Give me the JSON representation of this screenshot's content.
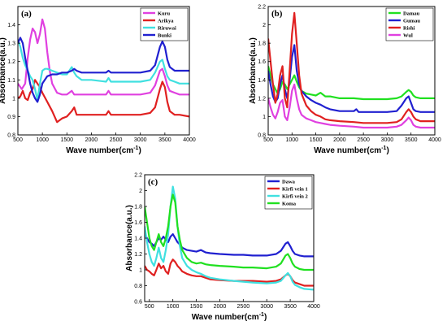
{
  "chart_data": [
    {
      "type": "line",
      "panel_label": "(a)",
      "xlabel": "Wave number(cm-1)",
      "ylabel": "Absorbance(a.u.)",
      "xlim": [
        500,
        4000
      ],
      "ylim": [
        0.8,
        1.5
      ],
      "xticks": [
        500,
        1000,
        1500,
        2000,
        2500,
        3000,
        3500,
        4000
      ],
      "yticks": [
        0.8,
        0.9,
        1.0,
        1.1,
        1.2,
        1.3,
        1.4
      ],
      "legend_position": "top-right",
      "series": [
        {
          "name": "Kuru",
          "color": "#e040e0",
          "x": [
            500,
            580,
            650,
            700,
            750,
            800,
            850,
            900,
            950,
            1000,
            1050,
            1100,
            1150,
            1200,
            1300,
            1400,
            1500,
            1600,
            1650,
            1700,
            1800,
            2000,
            2300,
            2350,
            2400,
            2700,
            3000,
            3200,
            3300,
            3400,
            3450,
            3500,
            3550,
            3600,
            3700,
            3800,
            4000
          ],
          "y": [
            1.08,
            1.05,
            1.08,
            1.22,
            1.32,
            1.38,
            1.36,
            1.3,
            1.35,
            1.43,
            1.38,
            1.25,
            1.15,
            1.08,
            1.03,
            1.02,
            1.02,
            1.04,
            1.02,
            1.02,
            1.02,
            1.02,
            1.02,
            1.04,
            1.02,
            1.02,
            1.02,
            1.03,
            1.07,
            1.15,
            1.16,
            1.12,
            1.07,
            1.04,
            1.03,
            1.02,
            1.02
          ]
        },
        {
          "name": "Arikya",
          "color": "#e02020",
          "x": [
            500,
            550,
            600,
            650,
            700,
            750,
            800,
            850,
            900,
            950,
            1000,
            1100,
            1200,
            1300,
            1400,
            1500,
            1600,
            1650,
            1700,
            1800,
            2000,
            2300,
            2350,
            2400,
            2700,
            3000,
            3200,
            3300,
            3400,
            3450,
            3500,
            3550,
            3600,
            3700,
            3800,
            4000
          ],
          "y": [
            1.0,
            1.01,
            1.04,
            1.0,
            0.99,
            1.03,
            1.05,
            1.1,
            1.08,
            1.06,
            1.03,
            0.98,
            0.93,
            0.87,
            0.89,
            0.9,
            0.93,
            0.95,
            0.91,
            0.91,
            0.91,
            0.91,
            0.93,
            0.91,
            0.91,
            0.91,
            0.92,
            0.95,
            1.05,
            1.09,
            1.06,
            0.98,
            0.93,
            0.91,
            0.91,
            0.9
          ]
        },
        {
          "name": "Riruwai",
          "color": "#40e0e0",
          "x": [
            500,
            550,
            600,
            650,
            700,
            750,
            800,
            850,
            900,
            950,
            1000,
            1050,
            1100,
            1200,
            1300,
            1400,
            1500,
            1600,
            1650,
            1700,
            1800,
            2000,
            2300,
            2350,
            2400,
            2700,
            3000,
            3200,
            3300,
            3400,
            3450,
            3500,
            3550,
            3600,
            3700,
            3800,
            4000
          ],
          "y": [
            1.32,
            1.28,
            1.22,
            1.18,
            1.15,
            1.12,
            1.1,
            1.05,
            0.99,
            1.08,
            1.15,
            1.16,
            1.16,
            1.15,
            1.14,
            1.13,
            1.13,
            1.17,
            1.14,
            1.12,
            1.1,
            1.1,
            1.09,
            1.11,
            1.09,
            1.09,
            1.09,
            1.1,
            1.14,
            1.2,
            1.21,
            1.16,
            1.12,
            1.1,
            1.09,
            1.08,
            1.08
          ]
        },
        {
          "name": "Bunki",
          "color": "#2020d0",
          "x": [
            500,
            550,
            600,
            650,
            700,
            750,
            800,
            850,
            900,
            950,
            1000,
            1100,
            1200,
            1300,
            1400,
            1500,
            1600,
            1650,
            1700,
            1800,
            2000,
            2300,
            2350,
            2400,
            2700,
            3000,
            3200,
            3300,
            3400,
            3450,
            3500,
            3550,
            3600,
            3700,
            3800,
            4000
          ],
          "y": [
            1.3,
            1.33,
            1.3,
            1.22,
            1.15,
            1.08,
            1.03,
            1.0,
            0.98,
            1.02,
            1.08,
            1.12,
            1.13,
            1.13,
            1.14,
            1.14,
            1.15,
            1.16,
            1.15,
            1.14,
            1.14,
            1.14,
            1.15,
            1.14,
            1.14,
            1.14,
            1.15,
            1.18,
            1.28,
            1.31,
            1.28,
            1.21,
            1.17,
            1.15,
            1.15,
            1.15
          ]
        }
      ]
    },
    {
      "type": "line",
      "panel_label": "(b)",
      "xlabel": "Wave number(cm-1)",
      "ylabel": "Absorbance(a.u.)",
      "xlim": [
        500,
        4000
      ],
      "ylim": [
        0.8,
        2.2
      ],
      "xticks": [
        500,
        1000,
        1500,
        2000,
        2500,
        3000,
        3500,
        4000
      ],
      "yticks": [
        0.8,
        1.0,
        1.2,
        1.4,
        1.6,
        1.8,
        2.0,
        2.2
      ],
      "legend_position": "top-right",
      "series": [
        {
          "name": "Damau",
          "color": "#20e020",
          "x": [
            500,
            550,
            600,
            650,
            700,
            750,
            800,
            850,
            900,
            950,
            1000,
            1050,
            1100,
            1150,
            1200,
            1300,
            1400,
            1500,
            1600,
            1700,
            1800,
            2000,
            2300,
            2500,
            2700,
            3000,
            3200,
            3300,
            3400,
            3450,
            3500,
            3550,
            3600,
            3700,
            3800,
            4000
          ],
          "y": [
            1.55,
            1.45,
            1.35,
            1.3,
            1.25,
            1.3,
            1.38,
            1.35,
            1.3,
            1.35,
            1.4,
            1.45,
            1.38,
            1.32,
            1.28,
            1.25,
            1.24,
            1.23,
            1.26,
            1.22,
            1.22,
            1.2,
            1.2,
            1.19,
            1.19,
            1.19,
            1.2,
            1.22,
            1.27,
            1.29,
            1.27,
            1.23,
            1.21,
            1.2,
            1.2,
            1.2
          ]
        },
        {
          "name": "Gumau",
          "color": "#2020d0",
          "x": [
            500,
            550,
            600,
            650,
            700,
            750,
            800,
            850,
            900,
            950,
            1000,
            1050,
            1100,
            1150,
            1200,
            1300,
            1400,
            1500,
            1600,
            1700,
            1800,
            2000,
            2300,
            2350,
            2400,
            2700,
            3000,
            3200,
            3300,
            3400,
            3450,
            3500,
            3550,
            3600,
            3700,
            3800,
            4000
          ],
          "y": [
            1.5,
            1.35,
            1.22,
            1.16,
            1.2,
            1.35,
            1.45,
            1.3,
            1.2,
            1.4,
            1.65,
            1.78,
            1.5,
            1.35,
            1.28,
            1.22,
            1.18,
            1.15,
            1.13,
            1.1,
            1.08,
            1.06,
            1.06,
            1.08,
            1.05,
            1.05,
            1.05,
            1.06,
            1.12,
            1.2,
            1.22,
            1.15,
            1.08,
            1.06,
            1.05,
            1.05,
            1.05
          ]
        },
        {
          "name": "Rishi",
          "color": "#e02020",
          "x": [
            500,
            550,
            600,
            650,
            700,
            750,
            800,
            850,
            900,
            950,
            1000,
            1050,
            1100,
            1150,
            1200,
            1300,
            1400,
            1500,
            1600,
            1700,
            1800,
            2000,
            2300,
            2500,
            2700,
            3000,
            3200,
            3300,
            3400,
            3450,
            3500,
            3550,
            3600,
            3700,
            3800,
            4000
          ],
          "y": [
            1.85,
            1.6,
            1.35,
            1.15,
            1.25,
            1.45,
            1.55,
            1.2,
            1.1,
            1.5,
            1.9,
            2.13,
            1.8,
            1.45,
            1.25,
            1.12,
            1.06,
            1.02,
            1.0,
            0.97,
            0.96,
            0.95,
            0.94,
            0.93,
            0.93,
            0.93,
            0.94,
            0.97,
            1.05,
            1.08,
            1.05,
            1.0,
            0.97,
            0.95,
            0.95,
            0.95
          ]
        },
        {
          "name": "Wul",
          "color": "#e040e0",
          "x": [
            500,
            550,
            600,
            650,
            700,
            750,
            800,
            850,
            900,
            950,
            1000,
            1050,
            1100,
            1150,
            1200,
            1300,
            1400,
            1500,
            1600,
            1700,
            1800,
            2000,
            2300,
            2500,
            2700,
            3000,
            3200,
            3300,
            3400,
            3450,
            3500,
            3550,
            3600,
            3700,
            3800,
            4000
          ],
          "y": [
            1.2,
            1.1,
            1.02,
            0.98,
            1.05,
            1.15,
            1.18,
            1.0,
            0.96,
            1.1,
            1.28,
            1.35,
            1.2,
            1.08,
            1.02,
            0.98,
            0.96,
            0.94,
            0.93,
            0.92,
            0.91,
            0.9,
            0.89,
            0.88,
            0.88,
            0.88,
            0.89,
            0.91,
            0.96,
            0.99,
            0.96,
            0.91,
            0.89,
            0.88,
            0.88,
            0.88
          ]
        }
      ]
    },
    {
      "type": "line",
      "panel_label": "(c)",
      "xlabel": "Wave number(cm-1)",
      "ylabel": "Absorbance(a.u.)",
      "xlim": [
        400,
        4000
      ],
      "ylim": [
        0.6,
        2.2
      ],
      "xticks": [
        500,
        1000,
        1500,
        2000,
        2500,
        3000,
        3500,
        4000
      ],
      "yticks": [
        0.6,
        0.8,
        1.0,
        1.2,
        1.4,
        1.6,
        1.8,
        2.0,
        2.2
      ],
      "legend_position": "top-right",
      "series": [
        {
          "name": "Dawa",
          "color": "#2020d0",
          "x": [
            400,
            450,
            500,
            550,
            600,
            650,
            700,
            750,
            800,
            850,
            900,
            950,
            1000,
            1050,
            1100,
            1150,
            1200,
            1300,
            1400,
            1500,
            1600,
            1700,
            1800,
            2000,
            2300,
            2500,
            2700,
            3000,
            3200,
            3300,
            3400,
            3450,
            3500,
            3550,
            3600,
            3700,
            3800,
            4000
          ],
          "y": [
            1.45,
            1.4,
            1.35,
            1.33,
            1.3,
            1.35,
            1.4,
            1.38,
            1.42,
            1.38,
            1.35,
            1.42,
            1.45,
            1.4,
            1.35,
            1.32,
            1.28,
            1.25,
            1.24,
            1.23,
            1.25,
            1.22,
            1.21,
            1.2,
            1.19,
            1.19,
            1.18,
            1.18,
            1.2,
            1.24,
            1.33,
            1.35,
            1.3,
            1.24,
            1.2,
            1.18,
            1.17,
            1.17
          ]
        },
        {
          "name": "Kirfi vein 1",
          "color": "#e02020",
          "x": [
            400,
            450,
            500,
            550,
            600,
            650,
            700,
            750,
            800,
            850,
            900,
            950,
            1000,
            1050,
            1100,
            1150,
            1200,
            1300,
            1400,
            1500,
            1600,
            1700,
            1800,
            2000,
            2300,
            2500,
            2700,
            3000,
            3200,
            3300,
            3400,
            3450,
            3500,
            3550,
            3600,
            3700,
            3800,
            4000
          ],
          "y": [
            1.05,
            1.0,
            0.98,
            0.95,
            0.93,
            1.0,
            1.08,
            1.02,
            1.05,
            0.98,
            0.95,
            1.08,
            1.13,
            1.1,
            1.05,
            1.02,
            0.98,
            0.95,
            0.93,
            0.92,
            0.92,
            0.9,
            0.88,
            0.87,
            0.86,
            0.86,
            0.86,
            0.85,
            0.86,
            0.88,
            0.93,
            0.95,
            0.92,
            0.87,
            0.84,
            0.82,
            0.8,
            0.8
          ]
        },
        {
          "name": "Kirfi vein 2",
          "color": "#40e0e0",
          "x": [
            400,
            450,
            500,
            550,
            600,
            650,
            700,
            750,
            800,
            850,
            900,
            950,
            1000,
            1050,
            1100,
            1150,
            1200,
            1300,
            1400,
            1500,
            1600,
            1700,
            1800,
            2000,
            2300,
            2500,
            2700,
            3000,
            3200,
            3300,
            3400,
            3450,
            3500,
            3550,
            3600,
            3700,
            3800,
            4000
          ],
          "y": [
            1.55,
            1.35,
            1.2,
            1.1,
            1.05,
            1.15,
            1.28,
            1.15,
            1.1,
            1.25,
            1.45,
            1.8,
            2.05,
            1.9,
            1.55,
            1.3,
            1.15,
            1.05,
            1.0,
            0.97,
            0.95,
            0.92,
            0.9,
            0.88,
            0.86,
            0.85,
            0.84,
            0.83,
            0.84,
            0.86,
            0.93,
            0.96,
            0.92,
            0.85,
            0.81,
            0.78,
            0.76,
            0.75
          ]
        },
        {
          "name": "Koma",
          "color": "#20e020",
          "x": [
            400,
            450,
            500,
            550,
            600,
            650,
            700,
            750,
            800,
            850,
            900,
            950,
            1000,
            1050,
            1100,
            1150,
            1200,
            1300,
            1400,
            1500,
            1600,
            1700,
            1800,
            2000,
            2300,
            2500,
            2700,
            3000,
            3200,
            3300,
            3400,
            3450,
            3500,
            3550,
            3600,
            3700,
            3800,
            4000
          ],
          "y": [
            1.8,
            1.6,
            1.4,
            1.3,
            1.25,
            1.35,
            1.45,
            1.35,
            1.3,
            1.4,
            1.55,
            1.8,
            1.95,
            1.85,
            1.55,
            1.38,
            1.25,
            1.15,
            1.1,
            1.08,
            1.09,
            1.07,
            1.06,
            1.05,
            1.04,
            1.03,
            1.03,
            1.02,
            1.04,
            1.08,
            1.18,
            1.2,
            1.15,
            1.08,
            1.04,
            1.01,
            1.0,
            1.0
          ]
        }
      ]
    }
  ]
}
